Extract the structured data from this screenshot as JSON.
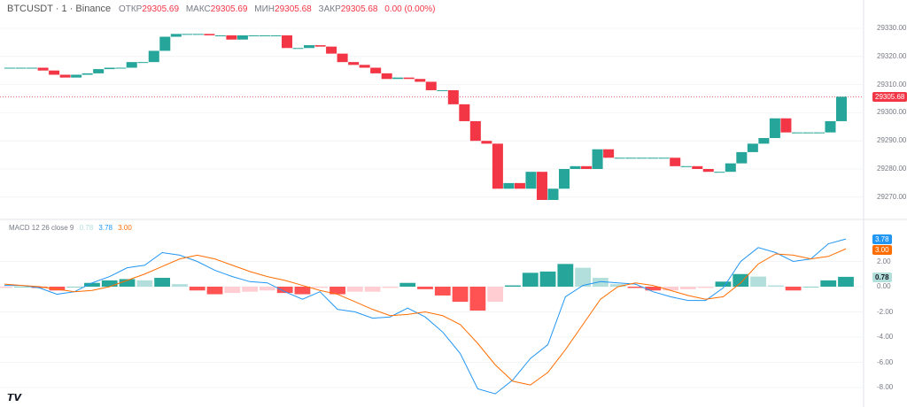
{
  "header": {
    "symbol": "BTCUSDT · 1 · Binance",
    "open_label": "ОТКР",
    "open": "29305.69",
    "high_label": "МАКС",
    "high": "29305.69",
    "low_label": "МИН",
    "low": "29305.68",
    "close_label": "ЗАКР",
    "close": "29305.68",
    "change": "0.00 (0.00%)"
  },
  "macd_legend": {
    "title": "MACD 12 26 close 9",
    "hist": "0.78",
    "macd": "3.78",
    "signal": "3.00"
  },
  "colors": {
    "up": "#26a69a",
    "down": "#f23645",
    "macd": "#2196f3",
    "signal": "#ff6d00",
    "hist_up_strong": "#26a69a",
    "hist_up_weak": "#b2dfdb",
    "hist_down_strong": "#ff5252",
    "hist_down_weak": "#ffcdd2"
  },
  "logo": "TV",
  "chart_data": [
    {
      "type": "candlestick",
      "ylim": [
        29265,
        29335
      ],
      "yticks": [
        "29330.00",
        "29320.00",
        "29310.00",
        "29300.00",
        "29290.00",
        "29280.00",
        "29270.00"
      ],
      "last_price": "29305.68",
      "closes": [
        29316,
        29316,
        29316,
        29315,
        29313.5,
        29312.5,
        29313.5,
        29314,
        29315.5,
        29316,
        29316,
        29318,
        29318,
        29322,
        29327,
        29328,
        29328,
        29328,
        29327.5,
        29327.5,
        29326,
        29327.5,
        29327.5,
        29327.5,
        29327.5,
        29323,
        29323,
        29324,
        29323.5,
        29321,
        29318,
        29317,
        29316,
        29314,
        29312,
        29312.5,
        29312,
        29311,
        29308,
        29308,
        29303,
        29297,
        29290,
        29289,
        29273,
        29275,
        29273,
        29279,
        29269,
        29273,
        29280,
        29281,
        29280,
        29287,
        29284,
        29284,
        29284,
        29284,
        29284,
        29284,
        29281,
        29281,
        29280,
        29279,
        29279,
        29282,
        29286,
        29289,
        29291,
        29298,
        29293,
        29293,
        29293,
        29293,
        29297,
        29305.68
      ]
    },
    {
      "type": "line+bar",
      "name": "MACD 12 26 close 9",
      "ylim": [
        -9,
        4
      ],
      "yticks": [
        "2.00",
        "0.00",
        "-2.00",
        "-4.00",
        "-6.00",
        "-8.00"
      ],
      "macd": [
        0.1,
        0.1,
        -0.1,
        -0.6,
        -0.4,
        0.3,
        0.8,
        1.5,
        1.7,
        2.7,
        2.5,
        2.0,
        1.3,
        0.8,
        0.4,
        0.3,
        -0.4,
        -1.0,
        -0.4,
        -1.8,
        -2.0,
        -2.5,
        -2.4,
        -1.7,
        -2.4,
        -3.6,
        -5.3,
        -8.1,
        -8.5,
        -7.4,
        -5.7,
        -4.6,
        -0.8,
        0.1,
        0.4,
        0.3,
        0.2,
        -0.4,
        -0.8,
        -1.1,
        -1.1,
        -0.1,
        2.0,
        3.1,
        2.7,
        2.0,
        2.2,
        3.4,
        3.78
      ],
      "signal": [
        0.2,
        0.1,
        0.0,
        -0.2,
        -0.4,
        -0.3,
        0.0,
        0.5,
        1.0,
        1.6,
        2.2,
        2.5,
        2.2,
        1.7,
        1.2,
        0.8,
        0.5,
        0.1,
        -0.3,
        -0.6,
        -1.2,
        -1.8,
        -2.3,
        -2.2,
        -2.0,
        -2.3,
        -3.0,
        -4.5,
        -6.2,
        -7.5,
        -7.8,
        -6.8,
        -5.0,
        -3.0,
        -1.0,
        0.0,
        0.3,
        0.1,
        -0.3,
        -0.7,
        -1.0,
        -0.8,
        0.3,
        1.8,
        2.6,
        2.5,
        2.2,
        2.4,
        3.0
      ],
      "histogram": [
        -0.1,
        0,
        -0.1,
        -0.3,
        0,
        0.3,
        0.5,
        0.6,
        0.5,
        0.7,
        0.2,
        -0.3,
        -0.6,
        -0.5,
        -0.4,
        -0.3,
        -0.5,
        -0.6,
        -0.1,
        -0.6,
        -0.4,
        -0.4,
        -0.1,
        0.3,
        -0.2,
        -0.7,
        -1.2,
        -1.9,
        -1.2,
        0.1,
        1.1,
        1.2,
        1.8,
        1.5,
        0.7,
        0.2,
        -0.1,
        -0.3,
        -0.3,
        -0.2,
        -0.1,
        0.4,
        1.0,
        0.8,
        0.1,
        -0.3,
        0.0,
        0.5,
        0.78
      ]
    }
  ]
}
